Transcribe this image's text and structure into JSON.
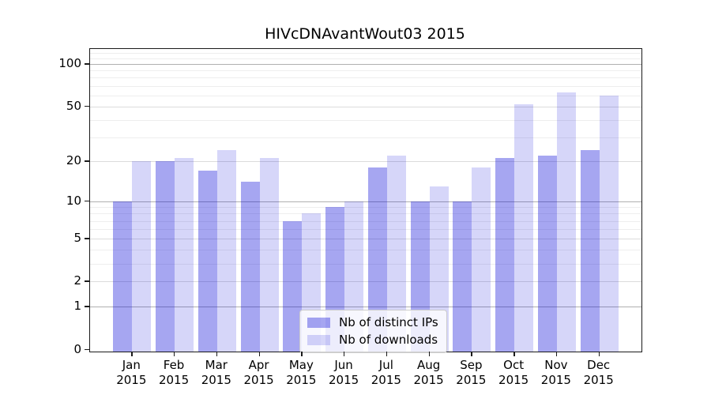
{
  "figure": {
    "title": "HIVcDNAvantWout03 2015"
  },
  "chart_data": {
    "type": "bar",
    "title": "HIVcDNAvantWout03 2015",
    "categories": [
      "Jan 2015",
      "Feb 2015",
      "Mar 2015",
      "Apr 2015",
      "May 2015",
      "Jun 2015",
      "Jul 2015",
      "Aug 2015",
      "Sep 2015",
      "Oct 2015",
      "Nov 2015",
      "Dec 2015"
    ],
    "series": [
      {
        "name": "Nb of distinct IPs",
        "values": [
          10,
          20,
          17,
          14,
          7,
          9,
          18,
          10,
          10,
          21,
          22,
          24
        ],
        "color": "#a6a6f1",
        "rgba": "rgba(0,0,215,0.35)"
      },
      {
        "name": "Nb of downloads",
        "values": [
          20,
          21,
          24,
          21,
          8,
          10,
          22,
          13,
          18,
          52,
          63,
          60
        ],
        "color": "#d9d9f9",
        "rgba": "rgba(0,0,215,0.16)"
      }
    ],
    "xlabel": "",
    "ylabel": "",
    "yscale": "log1p",
    "ylim": [
      0,
      130
    ],
    "yticks_labeled": [
      0,
      1,
      2,
      5,
      10,
      20,
      50,
      100
    ],
    "ytick_labels": [
      "0",
      "1",
      "2",
      "5",
      "10",
      "20",
      "50",
      "100"
    ],
    "yticks_major_dark": [
      1,
      10,
      100
    ],
    "yticks_mid": [
      2,
      5,
      20,
      50
    ],
    "yticks_minor": [
      3,
      4,
      6,
      7,
      8,
      9,
      30,
      40,
      60,
      70,
      80,
      90,
      110,
      120
    ],
    "grid": true,
    "legend_position": "lower center",
    "legend_items": [
      "Nb of distinct IPs",
      "Nb of downloads"
    ]
  },
  "colors": {
    "background": "#ffffff",
    "bar_distinct_ips": "#a6a6f1",
    "bar_downloads": "#d9d9f9",
    "grid_major": "#b0b0b0",
    "grid_mid": "#dcdcdc",
    "grid_minor": "#eeeeee",
    "spine": "#1a1a1a",
    "text": "#000000",
    "legend_border": "#cccccc"
  }
}
